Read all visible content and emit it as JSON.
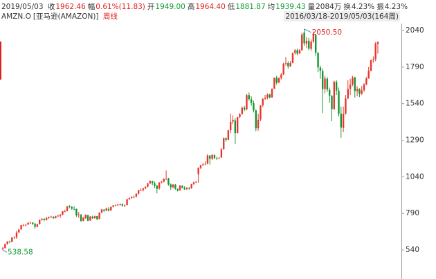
{
  "quote": {
    "date": "2019/05/03",
    "items": [
      {
        "label": "收",
        "value": "1962.46",
        "color": "#e02020"
      },
      {
        "label": "幅",
        "value": "0.61%(11.83)",
        "color": "#e02020"
      },
      {
        "label": "开",
        "value": "1949.00",
        "color": "#109a30"
      },
      {
        "label": "高",
        "value": "1964.40",
        "color": "#e02020"
      },
      {
        "label": "低",
        "value": "1881.87",
        "color": "#109a30"
      },
      {
        "label": "均",
        "value": "1939.43",
        "color": "#109a30"
      },
      {
        "label": "量",
        "value": "2084万",
        "color": "#333333"
      },
      {
        "label": "换",
        "value": "4.23%",
        "color": "#333333"
      },
      {
        "label": "振",
        "value": "4.23%",
        "color": "#333333"
      }
    ]
  },
  "symbol": {
    "code": "AMZN.O",
    "name": "[亚马逊(AMAZON)]",
    "period": "周线",
    "period_color": "#e02020",
    "range": "2016/03/18-2019/05/03(164周)"
  },
  "chart_data": {
    "type": "candlestick",
    "up_color": "#e8352a",
    "down_color": "#13952f",
    "ylim": [
      365,
      2116
    ],
    "yticks": [
      540,
      790,
      1040,
      1290,
      1540,
      1790,
      2040
    ],
    "annotations": {
      "high": "2050.50",
      "high_color": "#e02020",
      "low": "538.58",
      "low_color": "#109a30"
    },
    "candles": [
      [
        545,
        560,
        538.58,
        552
      ],
      [
        553,
        584,
        550,
        579
      ],
      [
        580,
        600,
        576,
        598
      ],
      [
        597,
        604,
        586,
        594
      ],
      [
        595,
        628,
        592,
        625
      ],
      [
        624,
        633,
        615,
        626
      ],
      [
        627,
        670,
        616,
        659
      ],
      [
        660,
        686,
        655,
        679
      ],
      [
        681,
        712,
        676,
        710
      ],
      [
        708,
        718,
        700,
        709
      ],
      [
        710,
        718,
        701,
        712
      ],
      [
        714,
        731,
        711,
        725
      ],
      [
        724,
        732,
        716,
        726
      ],
      [
        727,
        729,
        712,
        717
      ],
      [
        718,
        726,
        685,
        698
      ],
      [
        699,
        718,
        694,
        715
      ],
      [
        716,
        748,
        714,
        745
      ],
      [
        746,
        758,
        740,
        753
      ],
      [
        752,
        757,
        737,
        744
      ],
      [
        745,
        766,
        741,
        758
      ],
      [
        759,
        768,
        752,
        765
      ],
      [
        766,
        774,
        759,
        768
      ],
      [
        767,
        770,
        752,
        757
      ],
      [
        758,
        774,
        755,
        770
      ],
      [
        771,
        781,
        765,
        774
      ],
      [
        773,
        786,
        760,
        779
      ],
      [
        780,
        806,
        777,
        804
      ],
      [
        803,
        816,
        798,
        805
      ],
      [
        806,
        840,
        803,
        837
      ],
      [
        838,
        847,
        826,
        836
      ],
      [
        834,
        840,
        815,
        822
      ],
      [
        820,
        838,
        811,
        818
      ],
      [
        820,
        823,
        766,
        776
      ],
      [
        777,
        800,
        759,
        782
      ],
      [
        780,
        786,
        731,
        739
      ],
      [
        740,
        765,
        735,
        760
      ],
      [
        758,
        783,
        752,
        780
      ],
      [
        778,
        780,
        736,
        740
      ],
      [
        742,
        772,
        738,
        768
      ],
      [
        767,
        774,
        752,
        757
      ],
      [
        758,
        774,
        753,
        771
      ],
      [
        772,
        774,
        745,
        749
      ],
      [
        752,
        798,
        750,
        795
      ],
      [
        796,
        820,
        790,
        817
      ],
      [
        815,
        820,
        801,
        808
      ],
      [
        809,
        830,
        806,
        823
      ],
      [
        820,
        832,
        803,
        810
      ],
      [
        811,
        838,
        806,
        834
      ],
      [
        835,
        848,
        831,
        845
      ],
      [
        846,
        852,
        838,
        846
      ],
      [
        845,
        856,
        840,
        849
      ],
      [
        850,
        857,
        843,
        852
      ],
      [
        853,
        856,
        835,
        843
      ],
      [
        844,
        851,
        833,
        846
      ],
      [
        847,
        890,
        845,
        886
      ],
      [
        887,
        899,
        880,
        894
      ],
      [
        895,
        906,
        890,
        902
      ],
      [
        901,
        912,
        893,
        903
      ],
      [
        904,
        928,
        900,
        924
      ],
      [
        925,
        951,
        918,
        948
      ],
      [
        947,
        960,
        942,
        949
      ],
      [
        950,
        965,
        940,
        960
      ],
      [
        961,
        975,
        955,
        971
      ],
      [
        972,
        998,
        968,
        995
      ],
      [
        996,
        1016,
        990,
        1011
      ],
      [
        1010,
        1014,
        982,
        996
      ],
      [
        995,
        1008,
        962,
        979
      ],
      [
        980,
        984,
        927,
        958
      ],
      [
        960,
        1004,
        952,
        1000
      ],
      [
        1001,
        1012,
        995,
        1006
      ],
      [
        1007,
        1030,
        1001,
        1025
      ],
      [
        1026,
        1083,
        1018,
        1026
      ],
      [
        1028,
        1033,
        980,
        987
      ],
      [
        988,
        994,
        950,
        968
      ],
      [
        969,
        990,
        960,
        987
      ],
      [
        986,
        990,
        951,
        958
      ],
      [
        957,
        960,
        940,
        946
      ],
      [
        948,
        984,
        944,
        980
      ],
      [
        978,
        982,
        961,
        965
      ],
      [
        966,
        975,
        950,
        955
      ],
      [
        956,
        968,
        949,
        964
      ],
      [
        963,
        971,
        952,
        961
      ],
      [
        962,
        992,
        958,
        989
      ],
      [
        990,
        1006,
        984,
        1002
      ],
      [
        1003,
        1012,
        996,
        1006
      ],
      [
        1058,
        1106,
        1000,
        1100
      ],
      [
        1101,
        1122,
        1093,
        1120
      ],
      [
        1122,
        1135,
        1113,
        1125
      ],
      [
        1126,
        1146,
        1120,
        1129
      ],
      [
        1130,
        1195,
        1125,
        1186
      ],
      [
        1185,
        1188,
        1124,
        1162
      ],
      [
        1163,
        1194,
        1155,
        1190
      ],
      [
        1189,
        1192,
        1160,
        1168
      ],
      [
        1167,
        1178,
        1156,
        1165
      ],
      [
        1166,
        1176,
        1160,
        1169
      ],
      [
        1172,
        1236,
        1170,
        1229
      ],
      [
        1230,
        1308,
        1225,
        1305
      ],
      [
        1304,
        1310,
        1280,
        1293
      ],
      [
        1294,
        1362,
        1290,
        1357
      ],
      [
        1358,
        1472,
        1340,
        1416
      ],
      [
        1418,
        1460,
        1400,
        1429
      ],
      [
        1425,
        1440,
        1265,
        1339
      ],
      [
        1340,
        1450,
        1335,
        1448
      ],
      [
        1449,
        1475,
        1440,
        1468
      ],
      [
        1469,
        1520,
        1465,
        1511
      ],
      [
        1512,
        1525,
        1490,
        1500
      ],
      [
        1501,
        1605,
        1495,
        1598
      ],
      [
        1599,
        1617,
        1560,
        1571
      ],
      [
        1570,
        1590,
        1526,
        1544
      ],
      [
        1543,
        1560,
        1480,
        1495
      ],
      [
        1494,
        1500,
        1352,
        1371
      ],
      [
        1372,
        1470,
        1355,
        1430
      ],
      [
        1432,
        1530,
        1420,
        1527
      ],
      [
        1528,
        1580,
        1515,
        1572
      ],
      [
        1573,
        1600,
        1565,
        1580
      ],
      [
        1581,
        1610,
        1570,
        1602
      ],
      [
        1603,
        1608,
        1575,
        1583
      ],
      [
        1584,
        1645,
        1578,
        1641
      ],
      [
        1642,
        1720,
        1640,
        1715
      ],
      [
        1716,
        1730,
        1670,
        1683
      ],
      [
        1684,
        1720,
        1680,
        1715
      ],
      [
        1716,
        1750,
        1705,
        1739
      ],
      [
        1740,
        1820,
        1735,
        1813
      ],
      [
        1814,
        1858,
        1800,
        1817
      ],
      [
        1818,
        1830,
        1780,
        1795
      ],
      [
        1796,
        1832,
        1790,
        1818
      ],
      [
        1819,
        1890,
        1815,
        1886
      ],
      [
        1887,
        1914,
        1875,
        1905
      ],
      [
        1906,
        1915,
        1870,
        1882
      ],
      [
        1883,
        1912,
        1880,
        1905
      ],
      [
        1906,
        2025,
        1900,
        2012
      ],
      [
        2026,
        2050.5,
        1935,
        1952
      ],
      [
        1950,
        1995,
        1920,
        1970
      ],
      [
        1970,
        1990,
        1905,
        1916
      ],
      [
        1915,
        1980,
        1900,
        1964
      ],
      [
        1965,
        2033,
        1955,
        2012
      ],
      [
        2010,
        2015,
        1868,
        1889
      ],
      [
        1888,
        1892,
        1755,
        1788
      ],
      [
        1787,
        1800,
        1710,
        1765
      ],
      [
        1763,
        1780,
        1476,
        1639
      ],
      [
        1640,
        1730,
        1610,
        1712
      ],
      [
        1711,
        1723,
        1620,
        1636
      ],
      [
        1635,
        1650,
        1545,
        1593
      ],
      [
        1592,
        1600,
        1420,
        1502
      ],
      [
        1503,
        1697,
        1497,
        1690
      ],
      [
        1689,
        1700,
        1600,
        1629
      ],
      [
        1628,
        1650,
        1452,
        1470
      ],
      [
        1470,
        1520,
        1307,
        1377
      ],
      [
        1374,
        1520,
        1345,
        1470
      ],
      [
        1471,
        1600,
        1465,
        1575
      ],
      [
        1576,
        1700,
        1570,
        1640
      ],
      [
        1641,
        1710,
        1600,
        1670
      ],
      [
        1671,
        1730,
        1660,
        1718
      ],
      [
        1719,
        1725,
        1580,
        1626
      ],
      [
        1625,
        1660,
        1590,
        1640
      ],
      [
        1641,
        1645,
        1585,
        1607
      ],
      [
        1608,
        1660,
        1600,
        1631
      ],
      [
        1632,
        1680,
        1620,
        1671
      ],
      [
        1672,
        1722,
        1665,
        1712
      ],
      [
        1713,
        1790,
        1710,
        1764
      ],
      [
        1765,
        1840,
        1760,
        1837
      ],
      [
        1838,
        1863,
        1820,
        1843
      ],
      [
        1844,
        1960,
        1830,
        1950
      ],
      [
        1949,
        1964.4,
        1881.87,
        1962.46
      ]
    ]
  }
}
